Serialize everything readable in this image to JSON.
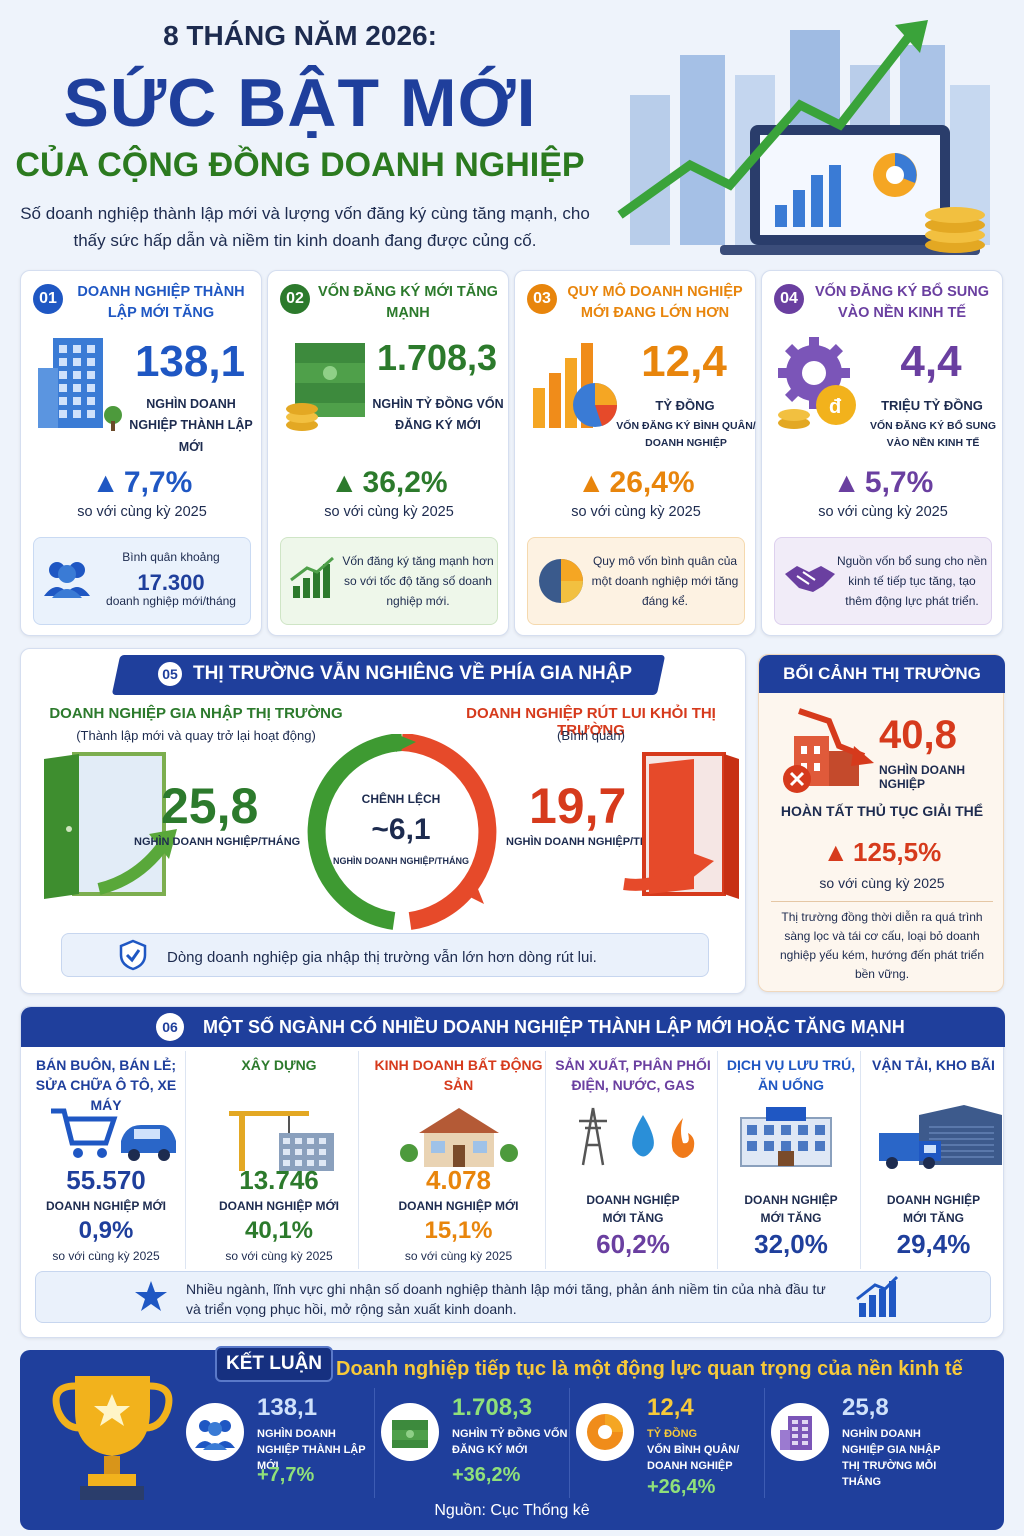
{
  "header": {
    "eyebrow": "8 THÁNG NĂM 2026:",
    "title": "SỨC BẬT MỚI",
    "subtitle": "CỦA CỘNG ĐỒNG DOANH NGHIỆP",
    "description": "Số doanh nghiệp thành lập mới và lượng vốn đăng ký cùng tăng mạnh, cho thấy sức hấp dẫn và niềm tin kinh doanh đang được củng cố."
  },
  "kpis": [
    {
      "no": "01",
      "title": "DOANH NGHIỆP THÀNH LẬP MỚI TĂNG",
      "value": "138,1",
      "unit": "NGHÌN DOANH NGHIỆP THÀNH LẬP MỚI",
      "growth": "7,7%",
      "compare": "so với cùng kỳ 2025",
      "note_line1": "Bình quân khoảng",
      "note_value": "17.300",
      "note_line2": "doanh nghiệp mới/tháng",
      "color": "#1f57c3"
    },
    {
      "no": "02",
      "title": "VỐN ĐĂNG KÝ MỚI TĂNG MẠNH",
      "value": "1.708,3",
      "unit": "NGHÌN TỶ ĐỒNG VỐN ĐĂNG KÝ MỚI",
      "growth": "36,2%",
      "compare": "so với cùng kỳ 2025",
      "note": "Vốn đăng ký tăng mạnh hơn so với tốc độ tăng số doanh nghiệp mới.",
      "color": "#2c7a2c"
    },
    {
      "no": "03",
      "title": "QUY MÔ DOANH NGHIỆP MỚI ĐANG LỚN HƠN",
      "value": "12,4",
      "unit": "TỶ ĐỒNG",
      "unit2": "VỐN ĐĂNG KÝ BÌNH QUÂN/ DOANH NGHIỆP",
      "growth": "26,4%",
      "compare": "so với cùng kỳ 2025",
      "note": "Quy mô vốn bình quân của một doanh nghiệp mới tăng đáng kể.",
      "color": "#e8850c"
    },
    {
      "no": "04",
      "title": "VỐN ĐĂNG KÝ BỔ SUNG VÀO NỀN KINH TẾ",
      "value": "4,4",
      "unit": "TRIỆU TỶ ĐỒNG",
      "unit2": "VỐN ĐĂNG KÝ BỔ SUNG VÀO NỀN KINH TẾ",
      "growth": "5,7%",
      "compare": "so với cùng kỳ 2025",
      "note": "Nguồn vốn bổ sung cho nền kinh tế tiếp tục tăng, tạo thêm động lực phát triển.",
      "color": "#6a3fa0"
    }
  ],
  "market": {
    "no": "05",
    "title": "THỊ TRƯỜNG VẪN NGHIÊNG VỀ PHÍA GIA NHẬP",
    "enter_title": "DOANH NGHIỆP GIA NHẬP THỊ TRƯỜNG",
    "enter_sub": "(Thành lập mới và quay trở lại hoạt động)",
    "enter_value": "25,8",
    "enter_unit": "NGHÌN DOANH NGHIỆP/THÁNG",
    "exit_title": "DOANH NGHIỆP RÚT LUI KHỎI THỊ TRƯỜNG",
    "exit_sub": "(Bình quân)",
    "exit_value": "19,7",
    "exit_unit": "NGHÌN DOANH NGHIỆP/THÁNG",
    "diff_label": "CHÊNH LỆCH",
    "diff_value": "~6,1",
    "diff_unit": "NGHÌN DOANH NGHIỆP/THÁNG",
    "footer": "Dòng doanh nghiệp gia nhập thị trường vẫn lớn hơn dòng rút lui."
  },
  "context": {
    "title": "BỐI CẢNH THỊ TRƯỜNG",
    "value": "40,8",
    "unit": "NGHÌN DOANH NGHIỆP",
    "label": "HOÀN TẤT THỦ TỤC GIẢI THỂ",
    "growth": "125,5%",
    "compare": "so với cùng kỳ 2025",
    "note": "Thị trường đồng thời diễn ra quá trình sàng lọc và tái cơ cấu, loại bỏ doanh nghiệp yếu kém, hướng đến phát triển bền vững."
  },
  "sectors": {
    "no": "06",
    "title": "MỘT SỐ NGÀNH CÓ NHIỀU DOANH NGHIỆP THÀNH LẬP MỚI HOẶC TĂNG MẠNH",
    "items": [
      {
        "name": "BÁN BUÔN, BÁN LẺ; SỬA CHỮA Ô TÔ, XE MÁY",
        "value": "55.570",
        "unit": "DOANH NGHIỆP MỚI",
        "growth": "0,9%",
        "compare": "so với cùng kỳ 2025"
      },
      {
        "name": "XÂY DỰNG",
        "value": "13.746",
        "unit": "DOANH NGHIỆP MỚI",
        "growth": "40,1%",
        "compare": "so với cùng kỳ 2025"
      },
      {
        "name": "KINH DOANH BẤT ĐỘNG SẢN",
        "value": "4.078",
        "unit": "DOANH NGHIỆP MỚI",
        "growth": "15,1%",
        "compare": "so với cùng kỳ 2025"
      },
      {
        "name": "SẢN XUẤT, PHÂN PHỐI ĐIỆN, NƯỚC, GAS",
        "unit": "DOANH NGHIỆP MỚI TĂNG",
        "growth": "60,2%"
      },
      {
        "name": "DỊCH VỤ LƯU TRÚ, ĂN UỐNG",
        "unit": "DOANH NGHIỆP MỚI TĂNG",
        "growth": "32,0%"
      },
      {
        "name": "VẬN TẢI, KHO BÃI",
        "unit": "DOANH NGHIỆP MỚI TĂNG",
        "growth": "29,4%"
      }
    ],
    "footer": "Nhiều ngành, lĩnh vực ghi nhận số doanh nghiệp thành lập mới tăng, phản ánh niềm tin của nhà đầu tư và triển vọng phục hồi, mở rộng sản xuất kinh doanh."
  },
  "conclusion": {
    "label": "KẾT LUẬN",
    "headline": "Doanh nghiệp tiếp tục là một động lực quan trọng của nền kinh tế",
    "items": [
      {
        "value": "138,1",
        "unit": "NGHÌN DOANH NGHIỆP THÀNH LẬP MỚI",
        "growth": "+7,7%"
      },
      {
        "value": "1.708,3",
        "unit": "NGHÌN TỶ ĐỒNG VỐN ĐĂNG KÝ MỚI",
        "growth": "+36,2%"
      },
      {
        "value": "12,4",
        "unit": "TỶ ĐỒNG",
        "unit2": "VỐN BÌNH QUÂN/ DOANH NGHIỆP",
        "growth": "+26,4%"
      },
      {
        "value": "25,8",
        "unit": "NGHÌN DOANH NGHIỆP GIA NHẬP THỊ TRƯỜNG MỖI THÁNG"
      }
    ],
    "source": "Nguồn: Cục Thống kê"
  }
}
